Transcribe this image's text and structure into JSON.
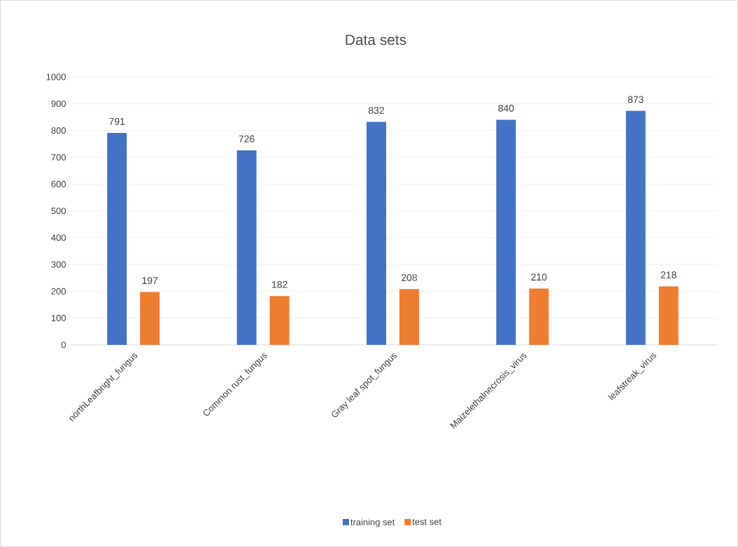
{
  "chart_data": {
    "type": "bar",
    "title": "Data sets",
    "categories": [
      "northLeafbright_fungus",
      "Common rust_fungus",
      "Gray leaf spot_fungus",
      "Maizelethalnecrosis_virus",
      "leafstreak_virus"
    ],
    "series": [
      {
        "name": "training set",
        "color": "#4472c4",
        "values": [
          791,
          726,
          832,
          840,
          873
        ]
      },
      {
        "name": "test set",
        "color": "#ed7d31",
        "values": [
          197,
          182,
          208,
          210,
          218
        ]
      }
    ],
    "ylim": [
      0,
      1000
    ],
    "yticks": [
      0,
      100,
      200,
      300,
      400,
      500,
      600,
      700,
      800,
      900,
      1000
    ],
    "grid": "y",
    "legend": "bottom",
    "data_labels": true
  }
}
